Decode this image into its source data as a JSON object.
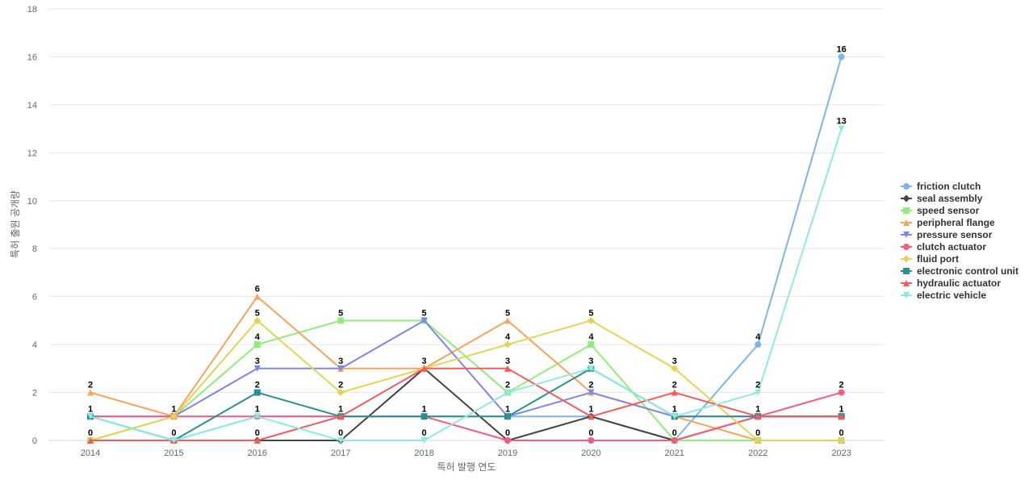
{
  "chart_data": {
    "type": "line",
    "title": "",
    "xlabel": "특허 발행 연도",
    "ylabel": "특허 출원 공개량",
    "x": [
      "2014",
      "2015",
      "2016",
      "2017",
      "2018",
      "2019",
      "2020",
      "2021",
      "2022",
      "2023"
    ],
    "ylim": [
      0,
      18
    ],
    "yticks": [
      0,
      2,
      4,
      6,
      8,
      10,
      12,
      14,
      16,
      18
    ],
    "grid": true,
    "legend_position": "right",
    "series": [
      {
        "name": "friction clutch",
        "values": [
          1,
          0,
          1,
          1,
          1,
          1,
          1,
          0,
          4,
          16
        ],
        "color": "#7cb5ec",
        "marker": "circle"
      },
      {
        "name": "seal assembly",
        "values": [
          0,
          0,
          0,
          0,
          3,
          0,
          1,
          0,
          1,
          1
        ],
        "color": "#434348",
        "marker": "diamond"
      },
      {
        "name": "speed sensor",
        "values": [
          0,
          1,
          4,
          5,
          5,
          2,
          4,
          0,
          0,
          0
        ],
        "color": "#90ed7d",
        "marker": "square"
      },
      {
        "name": "peripheral flange",
        "values": [
          2,
          1,
          6,
          3,
          3,
          5,
          2,
          1,
          0,
          0
        ],
        "color": "#f7a35c",
        "marker": "triangle"
      },
      {
        "name": "pressure sensor",
        "values": [
          1,
          1,
          3,
          3,
          5,
          1,
          2,
          1,
          1,
          1
        ],
        "color": "#8085e9",
        "marker": "triangle-down"
      },
      {
        "name": "clutch actuator",
        "values": [
          1,
          1,
          1,
          1,
          1,
          0,
          0,
          0,
          1,
          2
        ],
        "color": "#f15c80",
        "marker": "circle"
      },
      {
        "name": "fluid port",
        "values": [
          0,
          1,
          5,
          2,
          3,
          4,
          5,
          3,
          0,
          0
        ],
        "color": "#e4d354",
        "marker": "diamond"
      },
      {
        "name": "electronic control unit",
        "values": [
          1,
          0,
          2,
          1,
          1,
          1,
          3,
          1,
          1,
          1
        ],
        "color": "#2b908f",
        "marker": "square"
      },
      {
        "name": "hydraulic actuator",
        "values": [
          0,
          0,
          0,
          1,
          3,
          3,
          1,
          2,
          1,
          1
        ],
        "color": "#f45b5b",
        "marker": "triangle"
      },
      {
        "name": "electric vehicle",
        "values": [
          1,
          0,
          1,
          0,
          0,
          2,
          3,
          1,
          2,
          13
        ],
        "color": "#91e8e1",
        "marker": "triangle-down"
      }
    ],
    "data_labels": {
      "2014": [
        2,
        1,
        0
      ],
      "2015": [
        1,
        0
      ],
      "2016": [
        6,
        5,
        4,
        3,
        2,
        1,
        0
      ],
      "2017": [
        5,
        3,
        2,
        1,
        0
      ],
      "2018": [
        5,
        3,
        1,
        0
      ],
      "2019": [
        5,
        4,
        3,
        2,
        1,
        0
      ],
      "2020": [
        5,
        4,
        3,
        2,
        1,
        0
      ],
      "2021": [
        3,
        2,
        1,
        0
      ],
      "2022": [
        4,
        2,
        1,
        0
      ],
      "2023": [
        16,
        13,
        2,
        1,
        0
      ]
    }
  }
}
